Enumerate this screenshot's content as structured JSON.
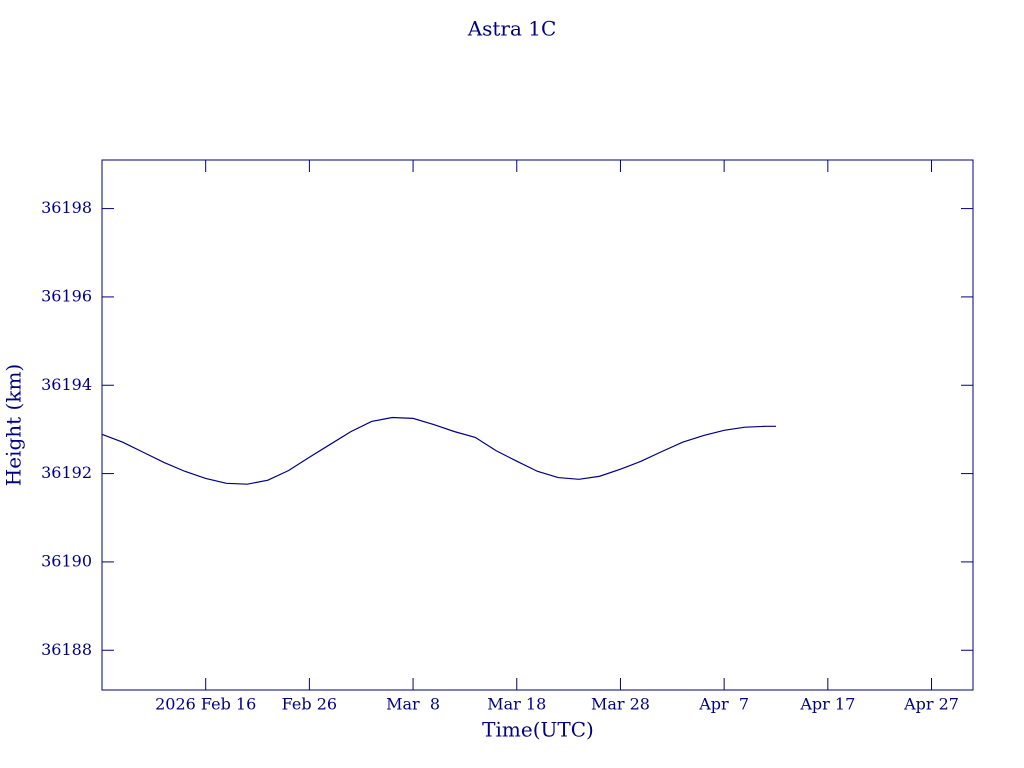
{
  "chart_data": {
    "type": "line",
    "title": "Astra 1C",
    "x_label": "Time(UTC)",
    "y_label": "Height (km)",
    "x": [
      "2026-02-06",
      "2026-02-08",
      "2026-02-10",
      "2026-02-12",
      "2026-02-14",
      "2026-02-16",
      "2026-02-18",
      "2026-02-20",
      "2026-02-22",
      "2026-02-24",
      "2026-02-26",
      "2026-02-28",
      "2026-03-02",
      "2026-03-04",
      "2026-03-06",
      "2026-03-08",
      "2026-03-10",
      "2026-03-12",
      "2026-03-14",
      "2026-03-16",
      "2026-03-18",
      "2026-03-20",
      "2026-03-22",
      "2026-03-24",
      "2026-03-26",
      "2026-03-28",
      "2026-03-30",
      "2026-04-01",
      "2026-04-03",
      "2026-04-05",
      "2026-04-07",
      "2026-04-09",
      "2026-04-11",
      "2026-04-12"
    ],
    "series": [
      {
        "name": "Height",
        "color": "#000080",
        "values": [
          36192.89,
          36192.71,
          36192.48,
          36192.25,
          36192.05,
          36191.89,
          36191.78,
          36191.76,
          36191.85,
          36192.07,
          36192.37,
          36192.66,
          36192.95,
          36193.18,
          36193.27,
          36193.25,
          36193.11,
          36192.95,
          36192.82,
          36192.52,
          36192.28,
          36192.05,
          36191.91,
          36191.87,
          36191.94,
          36192.1,
          36192.28,
          36192.5,
          36192.71,
          36192.86,
          36192.98,
          36193.05,
          36193.07,
          36193.07
        ]
      }
    ],
    "xlim": [
      "2026-02-06",
      "2026-05-01"
    ],
    "xticks": [
      {
        "value": "2026-02-16",
        "label": "2026 Feb 16"
      },
      {
        "value": "2026-02-26",
        "label": "Feb 26"
      },
      {
        "value": "2026-03-08",
        "label": "Mar  8"
      },
      {
        "value": "2026-03-18",
        "label": "Mar 18"
      },
      {
        "value": "2026-03-28",
        "label": "Mar 28"
      },
      {
        "value": "2026-04-07",
        "label": "Apr  7"
      },
      {
        "value": "2026-04-17",
        "label": "Apr 17"
      },
      {
        "value": "2026-04-27",
        "label": "Apr 27"
      }
    ],
    "ylim": [
      36187.1,
      36199.1
    ],
    "yticks": [
      36188,
      36190,
      36192,
      36194,
      36196,
      36198
    ]
  }
}
